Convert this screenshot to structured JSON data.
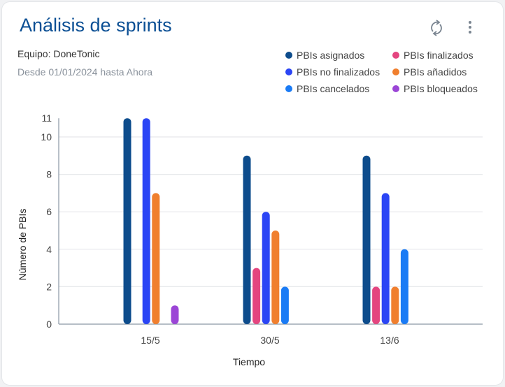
{
  "header": {
    "title": "Análisis de sprints",
    "team": "Equipo: DoneTonic",
    "range": "Desde 01/01/2024 hasta Ahora",
    "refresh_icon": "refresh-icon",
    "menu_icon": "more-vertical-icon"
  },
  "chart_data": {
    "type": "bar",
    "xlabel": "Tiempo",
    "ylabel": "Número de PBIs",
    "ylim": [
      0,
      11
    ],
    "yticks": [
      0,
      2,
      4,
      6,
      8,
      10,
      11
    ],
    "grid": true,
    "legend_position": "top-right",
    "categories": [
      "15/5",
      "30/5",
      "13/6"
    ],
    "series": [
      {
        "name": "PBIs asignados",
        "color": "#0d4c8c",
        "values": [
          11,
          9,
          9
        ]
      },
      {
        "name": "PBIs finalizados",
        "color": "#e4457f",
        "values": [
          0,
          3,
          2
        ]
      },
      {
        "name": "PBIs no finalizados",
        "color": "#2b45f5",
        "values": [
          11,
          6,
          7
        ]
      },
      {
        "name": "PBIs añadidos",
        "color": "#f07f2e",
        "values": [
          7,
          5,
          2
        ]
      },
      {
        "name": "PBIs cancelados",
        "color": "#1a7bf5",
        "values": [
          0,
          2,
          4
        ]
      },
      {
        "name": "PBIs bloqueados",
        "color": "#9b45d6",
        "values": [
          1,
          0,
          0
        ]
      }
    ]
  }
}
